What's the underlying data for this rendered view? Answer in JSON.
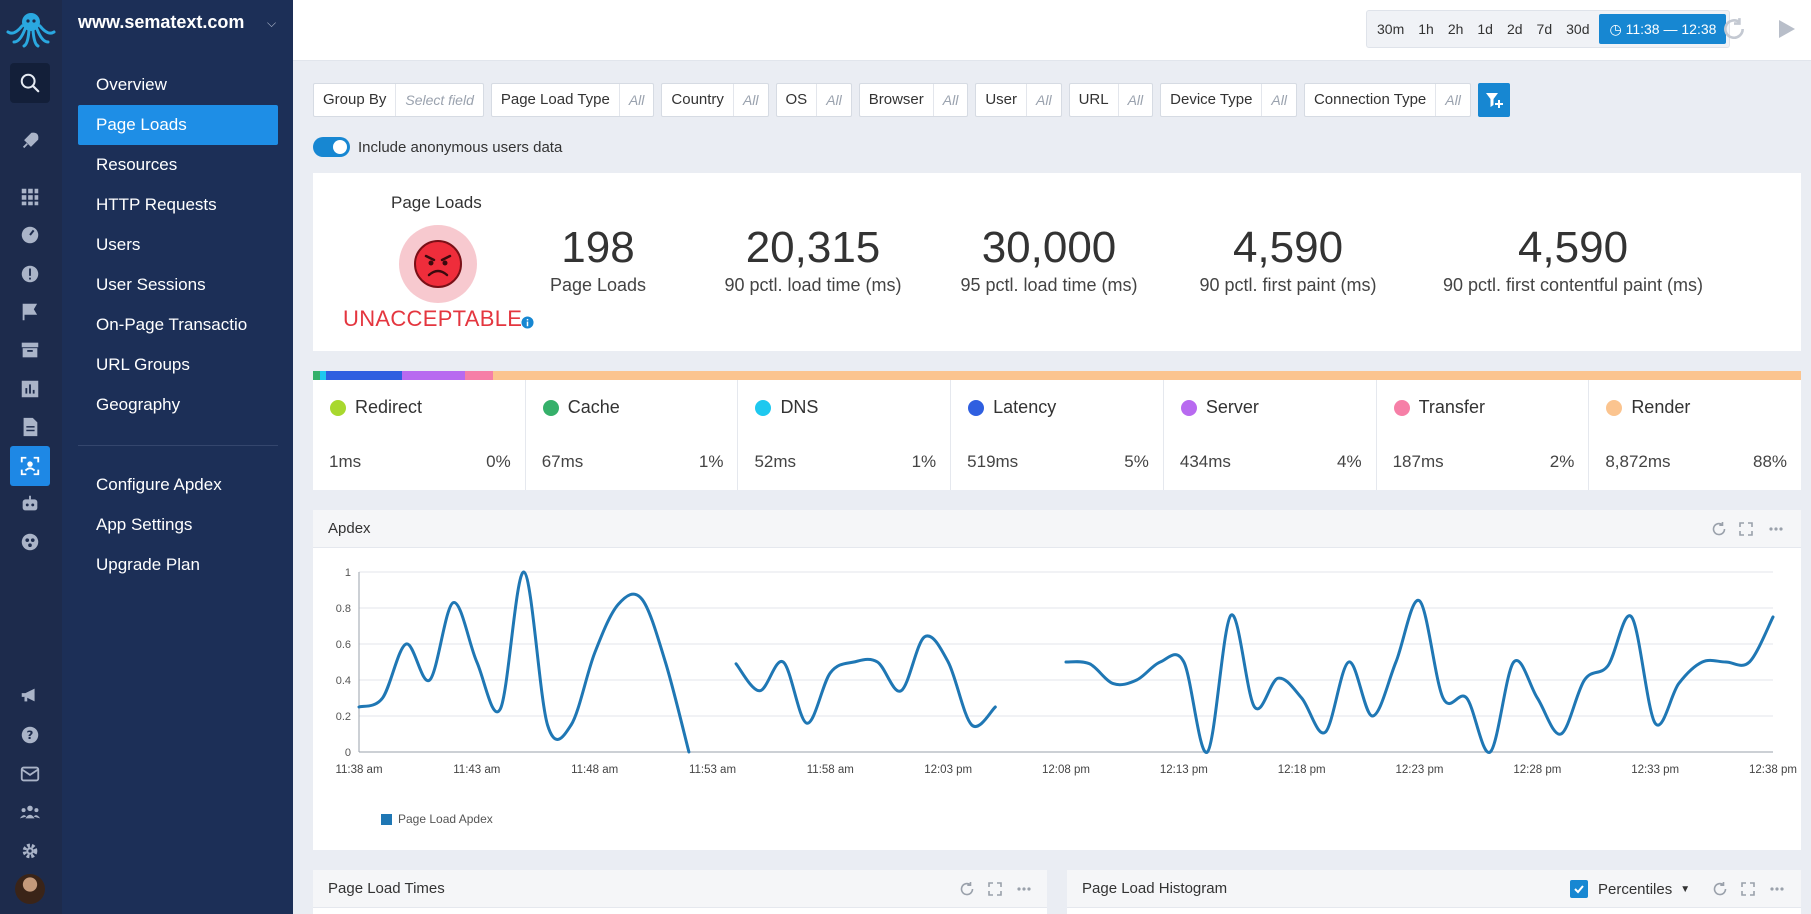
{
  "site": {
    "name": "www.sematext.com"
  },
  "nav": {
    "items": [
      {
        "label": "Overview"
      },
      {
        "label": "Page Loads"
      },
      {
        "label": "Resources"
      },
      {
        "label": "HTTP Requests"
      },
      {
        "label": "Users"
      },
      {
        "label": "User Sessions"
      },
      {
        "label": "On-Page Transactio"
      },
      {
        "label": "URL Groups"
      },
      {
        "label": "Geography"
      }
    ],
    "settings": [
      {
        "label": "Configure Apdex"
      },
      {
        "label": "App Settings"
      },
      {
        "label": "Upgrade Plan"
      }
    ],
    "active": "Page Loads"
  },
  "time": {
    "options": [
      "30m",
      "1h",
      "2h",
      "1d",
      "2d",
      "7d",
      "30d"
    ],
    "range": "11:38 — 12:38"
  },
  "filters": [
    {
      "label": "Group By",
      "value": "Select field"
    },
    {
      "label": "Page Load Type",
      "value": "All"
    },
    {
      "label": "Country",
      "value": "All"
    },
    {
      "label": "OS",
      "value": "All"
    },
    {
      "label": "Browser",
      "value": "All"
    },
    {
      "label": "User",
      "value": "All"
    },
    {
      "label": "URL",
      "value": "All"
    },
    {
      "label": "Device Type",
      "value": "All"
    },
    {
      "label": "Connection Type",
      "value": "All"
    }
  ],
  "anonymous": {
    "label": "Include anonymous users data",
    "enabled": true
  },
  "summary": {
    "apdex_title": "Page Loads",
    "apdex_status": "UNACCEPTABLE",
    "metrics": [
      {
        "value": "198",
        "label": "Page Loads"
      },
      {
        "value": "20,315",
        "label": "90 pctl. load time (ms)"
      },
      {
        "value": "30,000",
        "label": "95 pctl. load time (ms)"
      },
      {
        "value": "4,590",
        "label": "90 pctl. first paint (ms)"
      },
      {
        "value": "4,590",
        "label": "90 pctl. first contentful paint (ms)"
      }
    ]
  },
  "breakdown": [
    {
      "name": "Redirect",
      "ms": "1ms",
      "pct": "0%",
      "color": "#a8d82e"
    },
    {
      "name": "Cache",
      "ms": "67ms",
      "pct": "1%",
      "color": "#35b06a"
    },
    {
      "name": "DNS",
      "ms": "52ms",
      "pct": "1%",
      "color": "#1ec8ef"
    },
    {
      "name": "Latency",
      "ms": "519ms",
      "pct": "5%",
      "color": "#2f5fe0"
    },
    {
      "name": "Server",
      "ms": "434ms",
      "pct": "4%",
      "color": "#b86af0"
    },
    {
      "name": "Transfer",
      "ms": "187ms",
      "pct": "2%",
      "color": "#f67fa7"
    },
    {
      "name": "Render",
      "ms": "8,872ms",
      "pct": "88%",
      "color": "#fbc48f"
    }
  ],
  "bar_segments": [
    {
      "color": "#35b06a",
      "share": 0.005
    },
    {
      "color": "#1ec8ef",
      "share": 0.004
    },
    {
      "color": "#2f5fe0",
      "share": 0.051
    },
    {
      "color": "#b86af0",
      "share": 0.042
    },
    {
      "color": "#f67fa7",
      "share": 0.019
    },
    {
      "color": "#fbc48f",
      "share": 0.879
    }
  ],
  "panels": {
    "apdex": "Apdex",
    "load_times": "Page Load Times",
    "histogram": "Page Load Histogram",
    "percentiles": "Percentiles"
  },
  "chart_data": {
    "type": "line",
    "title": "Apdex",
    "xlabel": "",
    "ylabel": "",
    "ylim": [
      0,
      1
    ],
    "y_ticks": [
      "0",
      "0.2",
      "0.4",
      "0.6",
      "0.8",
      "1"
    ],
    "x_ticks": [
      "11:38 am",
      "11:43 am",
      "11:48 am",
      "11:53 am",
      "11:58 am",
      "12:03 pm",
      "12:08 pm",
      "12:13 pm",
      "12:18 pm",
      "12:23 pm",
      "12:28 pm",
      "12:33 pm",
      "12:38 pm"
    ],
    "x_range_minutes": [
      0,
      60
    ],
    "grid": true,
    "legend": "bottom-left",
    "series": [
      {
        "name": "Page Load Apdex",
        "color": "#1f77b4",
        "segments": [
          [
            [
              0,
              0.25
            ],
            [
              1,
              0.3
            ],
            [
              2,
              0.6
            ],
            [
              3,
              0.4
            ],
            [
              4,
              0.83
            ],
            [
              5,
              0.5
            ],
            [
              6,
              0.24
            ],
            [
              7,
              1.0
            ],
            [
              8,
              0.15
            ],
            [
              9,
              0.15
            ],
            [
              10,
              0.55
            ],
            [
              11,
              0.82
            ],
            [
              12,
              0.85
            ],
            [
              13,
              0.5
            ],
            [
              14,
              0.0
            ]
          ],
          [
            [
              16,
              0.49
            ],
            [
              17,
              0.34
            ],
            [
              18,
              0.5
            ],
            [
              19,
              0.16
            ],
            [
              20,
              0.44
            ],
            [
              21,
              0.5
            ],
            [
              22,
              0.5
            ],
            [
              23,
              0.34
            ],
            [
              24,
              0.64
            ],
            [
              25,
              0.5
            ],
            [
              26,
              0.15
            ],
            [
              27,
              0.25
            ]
          ],
          [
            [
              30,
              0.5
            ],
            [
              31,
              0.49
            ],
            [
              32,
              0.38
            ],
            [
              33,
              0.4
            ],
            [
              34,
              0.5
            ],
            [
              35,
              0.5
            ],
            [
              36,
              0.0
            ],
            [
              37,
              0.76
            ],
            [
              38,
              0.25
            ],
            [
              39,
              0.41
            ],
            [
              40,
              0.3
            ],
            [
              41,
              0.11
            ],
            [
              42,
              0.5
            ],
            [
              43,
              0.2
            ],
            [
              44,
              0.5
            ],
            [
              45,
              0.84
            ],
            [
              46,
              0.3
            ],
            [
              47,
              0.3
            ],
            [
              48,
              0.0
            ],
            [
              49,
              0.5
            ],
            [
              50,
              0.3
            ],
            [
              51,
              0.1
            ],
            [
              52,
              0.4
            ],
            [
              53,
              0.48
            ],
            [
              54,
              0.75
            ],
            [
              55,
              0.16
            ],
            [
              56,
              0.38
            ],
            [
              57,
              0.5
            ],
            [
              58,
              0.5
            ],
            [
              59,
              0.5
            ],
            [
              60,
              0.75
            ]
          ]
        ]
      }
    ]
  }
}
